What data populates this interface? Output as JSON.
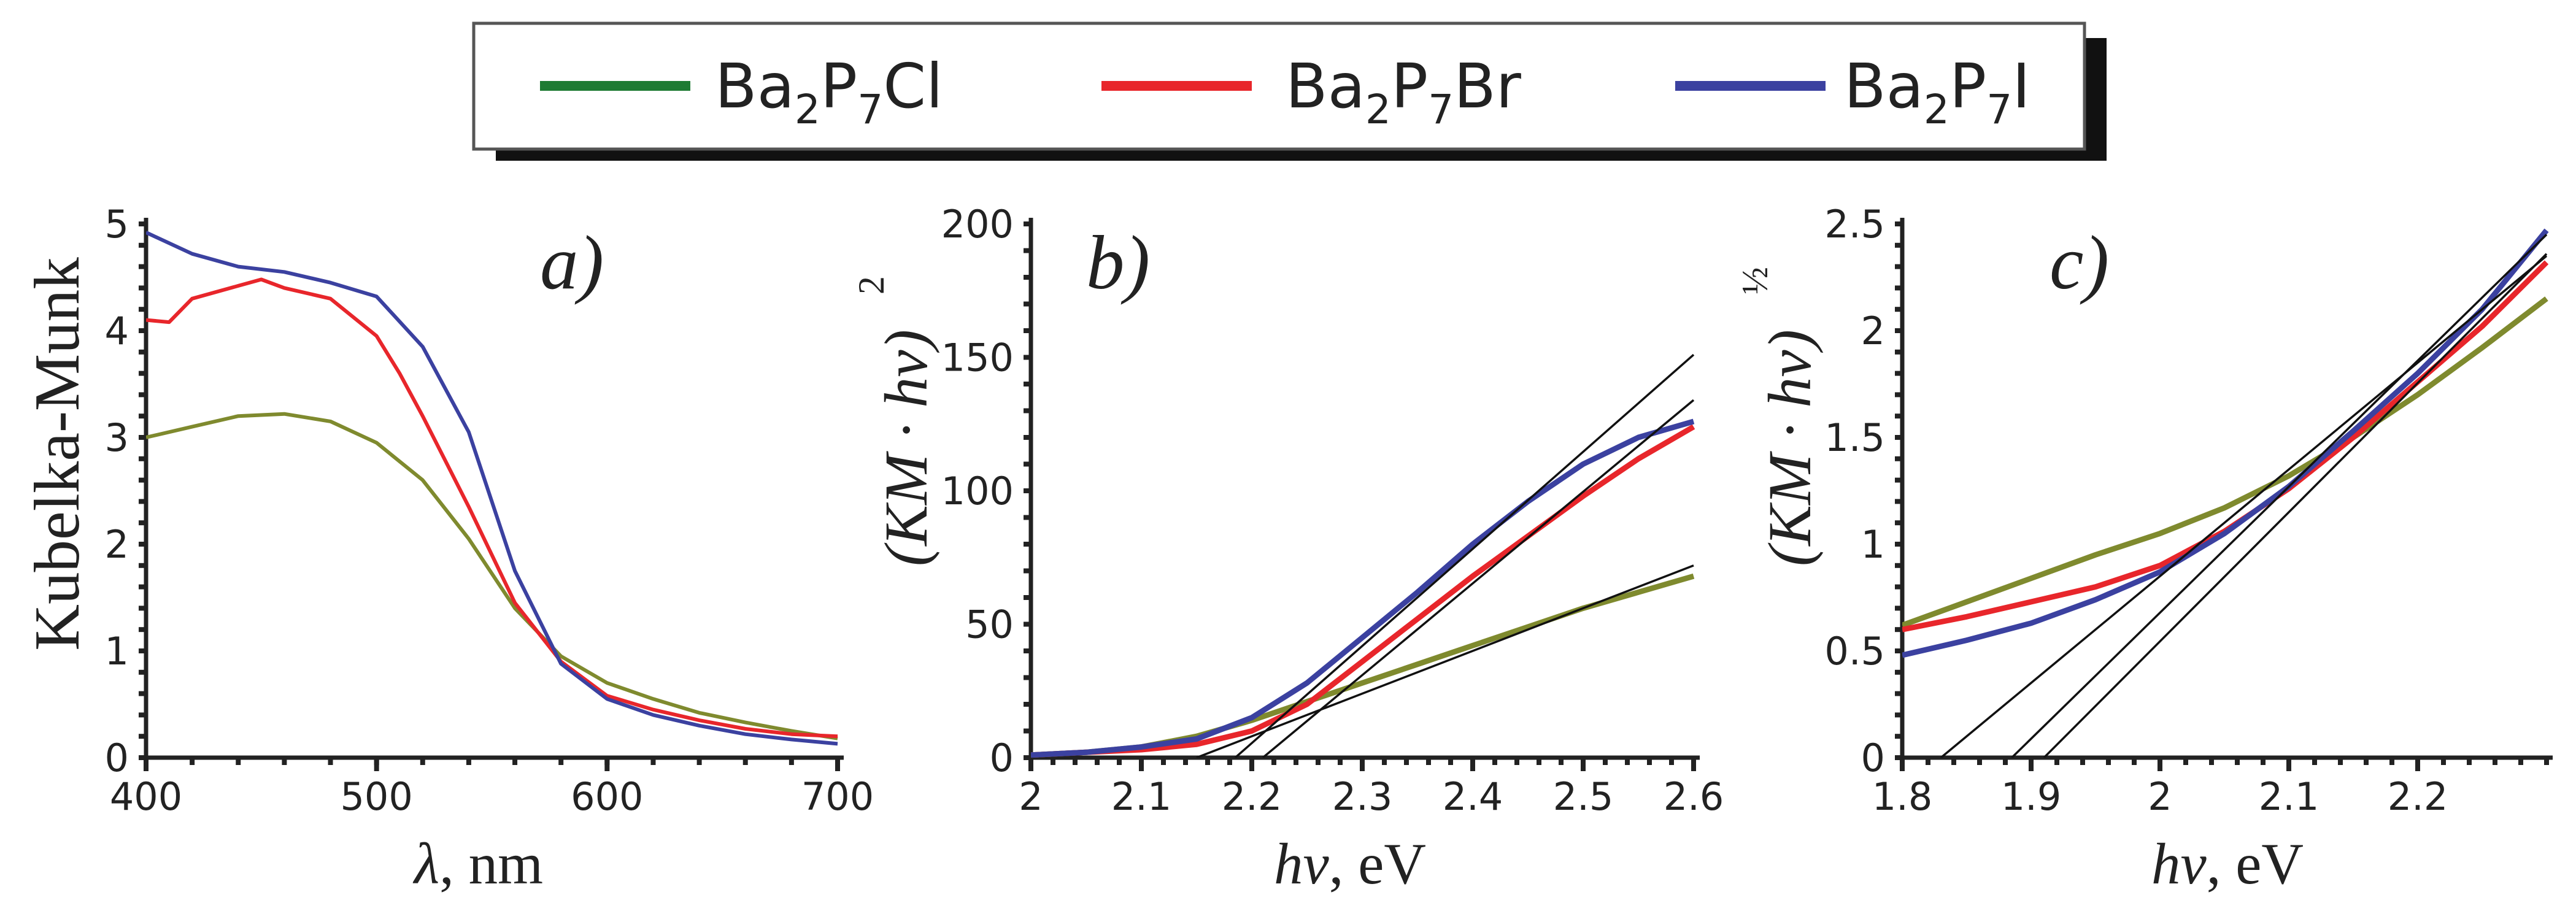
{
  "legend": {
    "entries": [
      {
        "base": "Ba",
        "s1": "2",
        "mid": "P",
        "s2": "7",
        "tail": "Cl",
        "color": "#1e7b33"
      },
      {
        "base": "Ba",
        "s1": "2",
        "mid": "P",
        "s2": "7",
        "tail": "Br",
        "color": "#e8262b"
      },
      {
        "base": "Ba",
        "s1": "2",
        "mid": "P",
        "s2": "7",
        "tail": "I",
        "color": "#3b41a0"
      }
    ]
  },
  "chart_data": [
    {
      "type": "line",
      "panel_label": "a)",
      "xlabel_sym": "λ",
      "xlabel_unit": ", nm",
      "ylabel": "Kubelka-Munk",
      "xlim": [
        400,
        700
      ],
      "ylim": [
        0,
        5
      ],
      "xticks": [
        400,
        500,
        600,
        700
      ],
      "xtick_labels": [
        "400",
        "500",
        "600",
        "700"
      ],
      "yticks": [
        0,
        1,
        2,
        3,
        4,
        5
      ],
      "ytick_labels": [
        "0",
        "1",
        "2",
        "3",
        "4",
        "5"
      ],
      "series": [
        {
          "name": "Ba2P7Cl",
          "color": "#7f8a2e",
          "width": 6,
          "x": [
            400,
            420,
            440,
            460,
            480,
            500,
            520,
            540,
            560,
            580,
            600,
            620,
            640,
            660,
            680,
            700
          ],
          "y": [
            3.0,
            3.1,
            3.2,
            3.22,
            3.15,
            2.95,
            2.6,
            2.05,
            1.4,
            0.95,
            0.7,
            0.55,
            0.42,
            0.33,
            0.25,
            0.18
          ]
        },
        {
          "name": "Ba2P7Br",
          "color": "#e8262b",
          "width": 6,
          "x": [
            400,
            410,
            420,
            440,
            450,
            460,
            480,
            500,
            510,
            520,
            540,
            560,
            580,
            600,
            620,
            640,
            660,
            680,
            700
          ],
          "y": [
            4.1,
            4.08,
            4.3,
            4.42,
            4.48,
            4.4,
            4.3,
            3.95,
            3.6,
            3.2,
            2.35,
            1.45,
            0.9,
            0.58,
            0.45,
            0.35,
            0.27,
            0.22,
            0.2
          ]
        },
        {
          "name": "Ba2P7I",
          "color": "#3b41a0",
          "width": 6,
          "x": [
            400,
            420,
            440,
            460,
            480,
            500,
            520,
            540,
            560,
            580,
            600,
            620,
            640,
            660,
            680,
            700
          ],
          "y": [
            4.92,
            4.72,
            4.6,
            4.55,
            4.45,
            4.32,
            3.85,
            3.05,
            1.75,
            0.88,
            0.55,
            0.4,
            0.3,
            0.22,
            0.17,
            0.13
          ]
        }
      ]
    },
    {
      "type": "line",
      "panel_label": "b)",
      "xlabel_sym": "hv",
      "xlabel_unit": ", eV",
      "ylabel_expr": "(KM · hv)",
      "ylabel_exp": "2",
      "xlim": [
        2.0,
        2.6
      ],
      "ylim": [
        0,
        200
      ],
      "xticks": [
        2.0,
        2.1,
        2.2,
        2.3,
        2.4,
        2.5,
        2.6
      ],
      "xtick_labels": [
        "2",
        "2.1",
        "2.2",
        "2.3",
        "2.4",
        "2.5",
        "2.6"
      ],
      "yticks": [
        0,
        50,
        100,
        150,
        200
      ],
      "ytick_labels": [
        "0",
        "50",
        "100",
        "150",
        "200"
      ],
      "series": [
        {
          "name": "Ba2P7Cl",
          "color": "#7f8a2e",
          "width": 9,
          "x": [
            2.0,
            2.05,
            2.1,
            2.15,
            2.2,
            2.25,
            2.3,
            2.35,
            2.4,
            2.45,
            2.5,
            2.55,
            2.6
          ],
          "y": [
            1,
            2,
            4,
            8,
            14,
            21,
            28,
            35,
            42,
            49,
            56,
            62,
            68
          ]
        },
        {
          "name": "Ba2P7Br",
          "color": "#e8262b",
          "width": 9,
          "x": [
            2.0,
            2.05,
            2.1,
            2.15,
            2.2,
            2.25,
            2.3,
            2.35,
            2.4,
            2.45,
            2.5,
            2.55,
            2.6
          ],
          "y": [
            1,
            2,
            3,
            5,
            10,
            20,
            36,
            52,
            68,
            83,
            98,
            112,
            124
          ]
        },
        {
          "name": "Ba2P7I",
          "color": "#3b41a0",
          "width": 9,
          "x": [
            2.0,
            2.05,
            2.1,
            2.15,
            2.2,
            2.25,
            2.3,
            2.35,
            2.4,
            2.45,
            2.5,
            2.55,
            2.6
          ],
          "y": [
            1,
            2,
            4,
            7,
            15,
            28,
            45,
            62,
            80,
            96,
            110,
            120,
            126
          ]
        }
      ],
      "fits": [
        {
          "x": [
            2.185,
            2.6
          ],
          "y": [
            0,
            151
          ]
        },
        {
          "x": [
            2.21,
            2.6
          ],
          "y": [
            0,
            134
          ]
        },
        {
          "x": [
            2.15,
            2.6
          ],
          "y": [
            0,
            72
          ]
        }
      ]
    },
    {
      "type": "line",
      "panel_label": "c)",
      "xlabel_sym": "hv",
      "xlabel_unit": ", eV",
      "ylabel_expr": "(KM · hv)",
      "ylabel_exp": "½",
      "xlim": [
        1.8,
        2.3
      ],
      "ylim": [
        0,
        2.5
      ],
      "xticks": [
        1.8,
        1.9,
        2.0,
        2.1,
        2.2
      ],
      "xtick_labels": [
        "1.8",
        "1.9",
        "2",
        "2.1",
        "2.2"
      ],
      "yticks": [
        0,
        0.5,
        1,
        1.5,
        2,
        2.5
      ],
      "ytick_labels": [
        "0",
        "0.5",
        "1",
        "1.5",
        "2",
        "2.5"
      ],
      "series": [
        {
          "name": "Ba2P7Cl",
          "color": "#7f8a2e",
          "width": 9,
          "x": [
            1.8,
            1.85,
            1.9,
            1.95,
            2.0,
            2.05,
            2.1,
            2.15,
            2.2,
            2.25,
            2.3
          ],
          "y": [
            0.62,
            0.73,
            0.84,
            0.95,
            1.05,
            1.17,
            1.32,
            1.5,
            1.7,
            1.92,
            2.15
          ]
        },
        {
          "name": "Ba2P7Br",
          "color": "#e8262b",
          "width": 9,
          "x": [
            1.8,
            1.85,
            1.9,
            1.95,
            2.0,
            2.05,
            2.1,
            2.15,
            2.2,
            2.25,
            2.3
          ],
          "y": [
            0.6,
            0.66,
            0.73,
            0.8,
            0.9,
            1.06,
            1.26,
            1.5,
            1.76,
            2.02,
            2.32
          ]
        },
        {
          "name": "Ba2P7I",
          "color": "#3b41a0",
          "width": 9,
          "x": [
            1.8,
            1.85,
            1.9,
            1.95,
            2.0,
            2.05,
            2.1,
            2.15,
            2.2,
            2.25,
            2.3
          ],
          "y": [
            0.48,
            0.55,
            0.63,
            0.74,
            0.87,
            1.05,
            1.27,
            1.53,
            1.8,
            2.1,
            2.47
          ]
        }
      ],
      "fits": [
        {
          "x": [
            1.83,
            2.3
          ],
          "y": [
            0,
            2.35
          ]
        },
        {
          "x": [
            1.885,
            2.3
          ],
          "y": [
            0,
            2.45
          ]
        },
        {
          "x": [
            1.91,
            2.3
          ],
          "y": [
            0,
            2.36
          ]
        }
      ]
    }
  ]
}
